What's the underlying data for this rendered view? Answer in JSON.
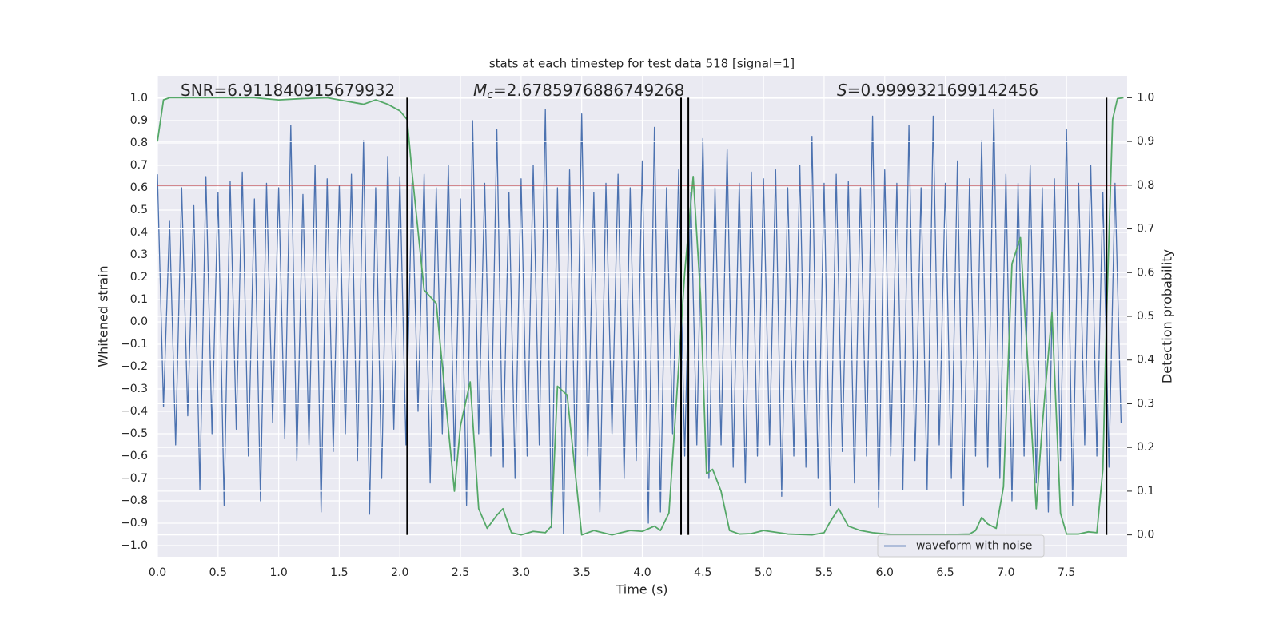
{
  "chart_data": {
    "type": "line",
    "title": "stats at each timestep for test data 518 [signal=1]",
    "xlabel": "Time (s)",
    "ylabel": "Whitened strain",
    "y2label": "Detection probability",
    "annotations": [
      {
        "text": "SNR=6.911840915679932"
      },
      {
        "symbol": "M",
        "subscript": "c",
        "text": "=2.6785976886749268"
      },
      {
        "symbol": "S",
        "text": "=0.9999321699142456"
      }
    ],
    "xlim": [
      0,
      8.0
    ],
    "ylim": [
      -1.05,
      1.1
    ],
    "y2lim": [
      -0.05,
      1.05
    ],
    "xticks": [
      {
        "value": 0,
        "label": "0.0"
      },
      {
        "value": 0.5,
        "label": "0.5"
      },
      {
        "value": 1,
        "label": "1.0"
      },
      {
        "value": 1.5,
        "label": "1.5"
      },
      {
        "value": 2,
        "label": "2.0"
      },
      {
        "value": 2.5,
        "label": "2.5"
      },
      {
        "value": 3,
        "label": "3.0"
      },
      {
        "value": 3.5,
        "label": "3.5"
      },
      {
        "value": 4,
        "label": "4.0"
      },
      {
        "value": 4.5,
        "label": "4.5"
      },
      {
        "value": 5,
        "label": "5.0"
      },
      {
        "value": 5.5,
        "label": "5.5"
      },
      {
        "value": 6,
        "label": "6.0"
      },
      {
        "value": 6.5,
        "label": "6.5"
      },
      {
        "value": 7,
        "label": "7.0"
      },
      {
        "value": 7.5,
        "label": "7.5"
      }
    ],
    "yticks": [
      {
        "value": -1,
        "label": "−1.0"
      },
      {
        "value": -0.9,
        "label": "−0.9"
      },
      {
        "value": -0.8,
        "label": "−0.8"
      },
      {
        "value": -0.7,
        "label": "−0.7"
      },
      {
        "value": -0.6,
        "label": "−0.6"
      },
      {
        "value": -0.5,
        "label": "−0.5"
      },
      {
        "value": -0.4,
        "label": "−0.4"
      },
      {
        "value": -0.3,
        "label": "−0.3"
      },
      {
        "value": -0.2,
        "label": "−0.2"
      },
      {
        "value": -0.1,
        "label": "−0.1"
      },
      {
        "value": 0,
        "label": "0.0"
      },
      {
        "value": 0.1,
        "label": "0.1"
      },
      {
        "value": 0.2,
        "label": "0.2"
      },
      {
        "value": 0.3,
        "label": "0.3"
      },
      {
        "value": 0.4,
        "label": "0.4"
      },
      {
        "value": 0.5,
        "label": "0.5"
      },
      {
        "value": 0.6,
        "label": "0.6"
      },
      {
        "value": 0.7,
        "label": "0.7"
      },
      {
        "value": 0.8,
        "label": "0.8"
      },
      {
        "value": 0.9,
        "label": "0.9"
      },
      {
        "value": 1,
        "label": "1.0"
      }
    ],
    "y2ticks": [
      {
        "value": 0,
        "label": "0.0"
      },
      {
        "value": 0.1,
        "label": "0.1"
      },
      {
        "value": 0.2,
        "label": "0.2"
      },
      {
        "value": 0.3,
        "label": "0.3"
      },
      {
        "value": 0.4,
        "label": "0.4"
      },
      {
        "value": 0.5,
        "label": "0.5"
      },
      {
        "value": 0.6,
        "label": "0.6"
      },
      {
        "value": 0.7,
        "label": "0.7"
      },
      {
        "value": 0.8,
        "label": "0.8"
      },
      {
        "value": 0.9,
        "label": "0.9"
      },
      {
        "value": 1,
        "label": "1.0"
      }
    ],
    "grid": true,
    "legend": "lower right",
    "series": [
      {
        "name": "waveform with noise",
        "color": "#4c72b0",
        "legend": true,
        "x": [
          0,
          0.05,
          0.1,
          0.15,
          0.2,
          0.25,
          0.3,
          0.35,
          0.4,
          0.45,
          0.5,
          0.55,
          0.6,
          0.65,
          0.7,
          0.75,
          0.8,
          0.85,
          0.9,
          0.95,
          1,
          1.05,
          1.1,
          1.15,
          1.2,
          1.25,
          1.3,
          1.35,
          1.4,
          1.45,
          1.5,
          1.55,
          1.6,
          1.65,
          1.7,
          1.75,
          1.8,
          1.85,
          1.9,
          1.95,
          2,
          2.05,
          2.1,
          2.15,
          2.2,
          2.25,
          2.3,
          2.35,
          2.4,
          2.45,
          2.5,
          2.55,
          2.6,
          2.65,
          2.7,
          2.75,
          2.8,
          2.85,
          2.9,
          2.95,
          3,
          3.05,
          3.1,
          3.15,
          3.2,
          3.25,
          3.3,
          3.35,
          3.4,
          3.45,
          3.5,
          3.55,
          3.6,
          3.65,
          3.7,
          3.75,
          3.8,
          3.85,
          3.9,
          3.95,
          4,
          4.05,
          4.1,
          4.15,
          4.2,
          4.25,
          4.3,
          4.35,
          4.4,
          4.45,
          4.5,
          4.55,
          4.6,
          4.65,
          4.7,
          4.75,
          4.8,
          4.85,
          4.9,
          4.95,
          5,
          5.05,
          5.1,
          5.15,
          5.2,
          5.25,
          5.3,
          5.35,
          5.4,
          5.45,
          5.5,
          5.55,
          5.6,
          5.65,
          5.7,
          5.75,
          5.8,
          5.85,
          5.9,
          5.95,
          6,
          6.05,
          6.1,
          6.15,
          6.2,
          6.25,
          6.3,
          6.35,
          6.4,
          6.45,
          6.5,
          6.55,
          6.6,
          6.65,
          6.7,
          6.75,
          6.8,
          6.85,
          6.9,
          6.95,
          7,
          7.05,
          7.1,
          7.15,
          7.2,
          7.25,
          7.3,
          7.35,
          7.4,
          7.45,
          7.5,
          7.55,
          7.6,
          7.65,
          7.7,
          7.75,
          7.8,
          7.85,
          7.9,
          7.95
        ],
        "values": [
          0.66,
          -0.38,
          0.45,
          -0.55,
          0.6,
          -0.42,
          0.52,
          -0.75,
          0.65,
          -0.5,
          0.58,
          -0.82,
          0.63,
          -0.48,
          0.67,
          -0.6,
          0.55,
          -0.8,
          0.62,
          -0.45,
          0.6,
          -0.52,
          0.88,
          -0.62,
          0.57,
          -0.55,
          0.7,
          -0.85,
          0.64,
          -0.58,
          0.61,
          -0.5,
          0.66,
          -0.62,
          0.81,
          -0.86,
          0.6,
          -0.7,
          0.74,
          -0.48,
          0.65,
          -0.55,
          0.62,
          -0.4,
          0.66,
          -0.72,
          0.6,
          -0.5,
          0.7,
          -0.62,
          0.55,
          -0.82,
          0.9,
          -0.5,
          0.62,
          -0.6,
          0.86,
          -0.65,
          0.58,
          -0.7,
          0.64,
          -0.6,
          0.7,
          -0.55,
          0.95,
          -0.92,
          0.6,
          -0.95,
          0.68,
          -0.7,
          0.93,
          -0.6,
          0.58,
          -0.85,
          0.62,
          -0.5,
          0.66,
          -0.7,
          0.6,
          -0.62,
          0.72,
          -0.9,
          0.87,
          -0.85,
          0.6,
          -0.5,
          0.68,
          -0.6,
          0.58,
          -0.55,
          0.82,
          -0.7,
          0.6,
          -0.55,
          0.77,
          -0.65,
          0.62,
          -0.72,
          0.67,
          -0.6,
          0.64,
          -0.55,
          0.68,
          -0.78,
          0.6,
          -0.6,
          0.7,
          -0.65,
          0.83,
          -0.7,
          0.62,
          -0.82,
          0.66,
          -0.58,
          0.63,
          -0.72,
          0.6,
          -0.6,
          0.92,
          -0.83,
          0.68,
          -0.6,
          0.62,
          -0.75,
          0.88,
          -0.62,
          0.6,
          -0.75,
          0.92,
          -0.55,
          0.62,
          -0.7,
          0.72,
          -0.82,
          0.64,
          -0.6,
          0.81,
          -0.65,
          0.95,
          -0.7,
          0.66,
          -0.8,
          0.62,
          -0.6,
          0.7,
          -0.72,
          0.6,
          -0.85,
          0.64,
          -0.62,
          0.86,
          -0.82,
          0.62,
          -0.55,
          0.7,
          -0.6,
          0.58,
          -0.65,
          0.62,
          -0.45
        ]
      },
      {
        "name": "detection probability",
        "color": "#55a868",
        "axis": "y2",
        "legend": false,
        "x": [
          0,
          0.05,
          0.1,
          0.3,
          0.5,
          0.8,
          1.0,
          1.2,
          1.4,
          1.6,
          1.7,
          1.8,
          1.9,
          2.0,
          2.06,
          2.1,
          2.2,
          2.3,
          2.45,
          2.5,
          2.58,
          2.65,
          2.72,
          2.8,
          2.85,
          2.92,
          3.0,
          3.1,
          3.2,
          3.25,
          3.3,
          3.38,
          3.5,
          3.6,
          3.75,
          3.9,
          4.0,
          4.1,
          4.15,
          4.22,
          4.28,
          4.35,
          4.42,
          4.48,
          4.53,
          4.58,
          4.65,
          4.72,
          4.8,
          4.9,
          5.0,
          5.2,
          5.4,
          5.5,
          5.55,
          5.62,
          5.7,
          5.8,
          5.9,
          6.1,
          6.4,
          6.7,
          6.75,
          6.8,
          6.85,
          6.92,
          6.98,
          7.05,
          7.12,
          7.2,
          7.25,
          7.3,
          7.38,
          7.45,
          7.5,
          7.6,
          7.68,
          7.75,
          7.8,
          7.83,
          7.88,
          7.92,
          7.97
        ],
        "values": [
          0.9,
          0.995,
          1.0,
          1.0,
          1.0,
          1.0,
          0.995,
          0.998,
          1.0,
          0.99,
          0.985,
          0.995,
          0.985,
          0.97,
          0.95,
          0.83,
          0.56,
          0.53,
          0.1,
          0.25,
          0.35,
          0.06,
          0.015,
          0.045,
          0.06,
          0.005,
          0.0,
          0.008,
          0.005,
          0.02,
          0.34,
          0.32,
          0.0,
          0.01,
          0.0,
          0.01,
          0.008,
          0.02,
          0.01,
          0.05,
          0.3,
          0.6,
          0.82,
          0.55,
          0.14,
          0.15,
          0.1,
          0.01,
          0.002,
          0.003,
          0.01,
          0.002,
          0.0,
          0.005,
          0.03,
          0.06,
          0.02,
          0.01,
          0.005,
          0.0,
          0.0,
          0.002,
          0.01,
          0.04,
          0.025,
          0.015,
          0.11,
          0.62,
          0.68,
          0.3,
          0.06,
          0.25,
          0.51,
          0.05,
          0.002,
          0.002,
          0.007,
          0.005,
          0.15,
          0.5,
          0.95,
          0.998,
          1.0
        ]
      }
    ],
    "hline": {
      "value": 0.8,
      "axis": "y2",
      "color": "#c44e52"
    },
    "vlines": {
      "x": [
        2.06,
        4.32,
        4.38,
        7.83
      ],
      "from": 0,
      "to": 1,
      "axis": "y2",
      "color": "#000000"
    }
  }
}
